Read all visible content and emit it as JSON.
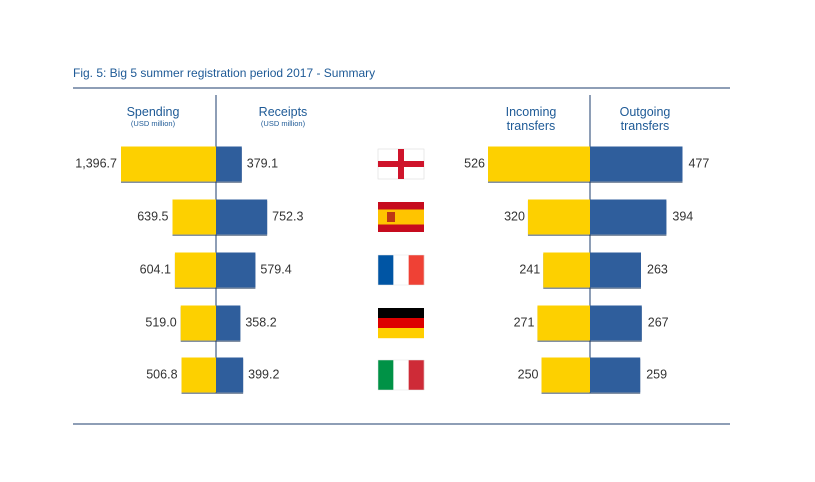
{
  "title": "Fig. 5: Big 5 summer registration period 2017 - Summary",
  "headers": {
    "spending": "Spending",
    "spending_unit": "(USD million)",
    "receipts": "Receipts",
    "receipts_unit": "(USD million)",
    "incoming": [
      "Incoming",
      "transfers"
    ],
    "outgoing": [
      "Outgoing",
      "transfers"
    ]
  },
  "colors": {
    "spending": "#fdd000",
    "receipts": "#2f5e9c",
    "rule": "#1e3e6e",
    "header_text": "#1e5a96"
  },
  "chart_data": [
    {
      "type": "bar",
      "orientation": "horizontal",
      "layout": "butterfly",
      "unit": "USD million",
      "categories": [
        "England",
        "Spain",
        "France",
        "Germany",
        "Italy"
      ],
      "series": [
        {
          "name": "Spending",
          "values": [
            1396.7,
            639.5,
            604.1,
            519.0,
            506.8
          ],
          "labels": [
            "1,396.7",
            "639.5",
            "604.1",
            "519.0",
            "506.8"
          ]
        },
        {
          "name": "Receipts",
          "values": [
            379.1,
            752.3,
            579.4,
            358.2,
            399.2
          ],
          "labels": [
            "379.1",
            "752.3",
            "579.4",
            "358.2",
            "399.2"
          ]
        }
      ]
    },
    {
      "type": "bar",
      "orientation": "horizontal",
      "layout": "butterfly",
      "categories": [
        "England",
        "Spain",
        "France",
        "Germany",
        "Italy"
      ],
      "series": [
        {
          "name": "Incoming transfers",
          "values": [
            526,
            320,
            241,
            271,
            250
          ],
          "labels": [
            "526",
            "320",
            "241",
            "271",
            "250"
          ]
        },
        {
          "name": "Outgoing transfers",
          "values": [
            477,
            394,
            263,
            267,
            259
          ],
          "labels": [
            "477",
            "394",
            "263",
            "267",
            "259"
          ]
        }
      ]
    }
  ],
  "flags": [
    {
      "name": "england-flag-icon",
      "kind": "cross",
      "colors": [
        "#ffffff",
        "#cf142b"
      ]
    },
    {
      "name": "spain-flag-icon",
      "kind": "h3",
      "colors": [
        "#c60b1e",
        "#ffc400",
        "#c60b1e"
      ]
    },
    {
      "name": "france-flag-icon",
      "kind": "v3",
      "colors": [
        "#0055a4",
        "#ffffff",
        "#ef4135"
      ]
    },
    {
      "name": "germany-flag-icon",
      "kind": "h3eq",
      "colors": [
        "#000000",
        "#dd0000",
        "#ffce00"
      ]
    },
    {
      "name": "italy-flag-icon",
      "kind": "v3",
      "colors": [
        "#009246",
        "#ffffff",
        "#ce2b37"
      ]
    }
  ]
}
